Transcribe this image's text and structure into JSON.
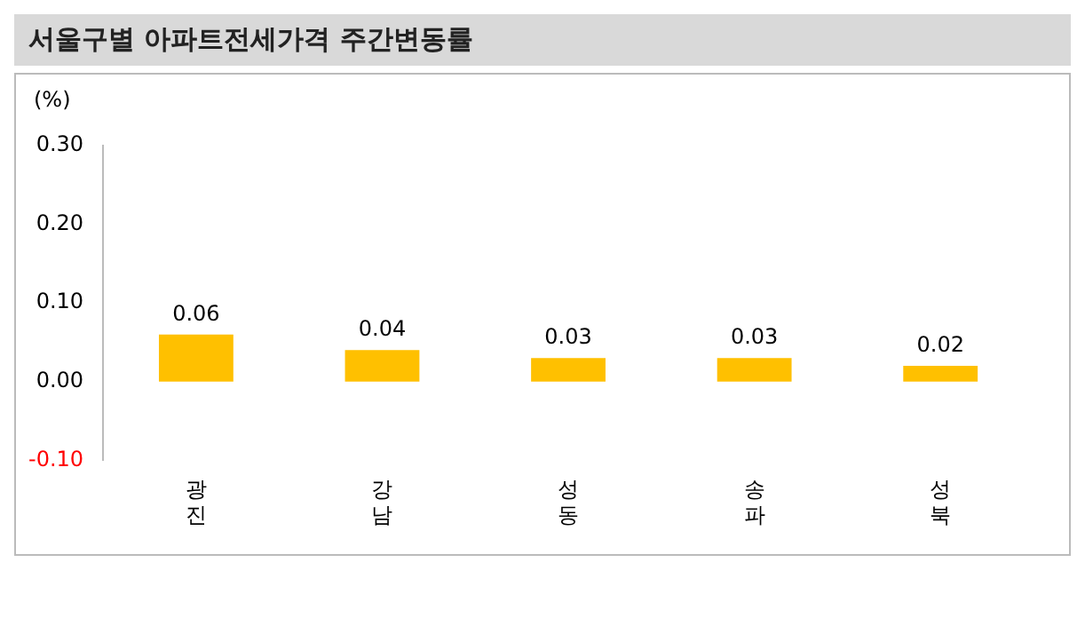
{
  "chart_data": {
    "type": "bar",
    "title": "서울구별 아파트전세가격 주간변동률",
    "ylabel": "(%)",
    "categories": [
      "광진",
      "강남",
      "성동",
      "송파",
      "성북"
    ],
    "values": [
      0.06,
      0.04,
      0.03,
      0.03,
      0.02
    ],
    "color": "#ffc000",
    "ylim": [
      -0.1,
      0.3
    ],
    "yticks": [
      {
        "value": -0.1,
        "label": "-0.10"
      },
      {
        "value": 0,
        "label": "0.00"
      },
      {
        "value": 0.1,
        "label": "0.10"
      },
      {
        "value": 0.2,
        "label": "0.20"
      },
      {
        "value": 0.3,
        "label": "0.30"
      }
    ],
    "grid": false,
    "legend": false,
    "data_labels": true
  }
}
